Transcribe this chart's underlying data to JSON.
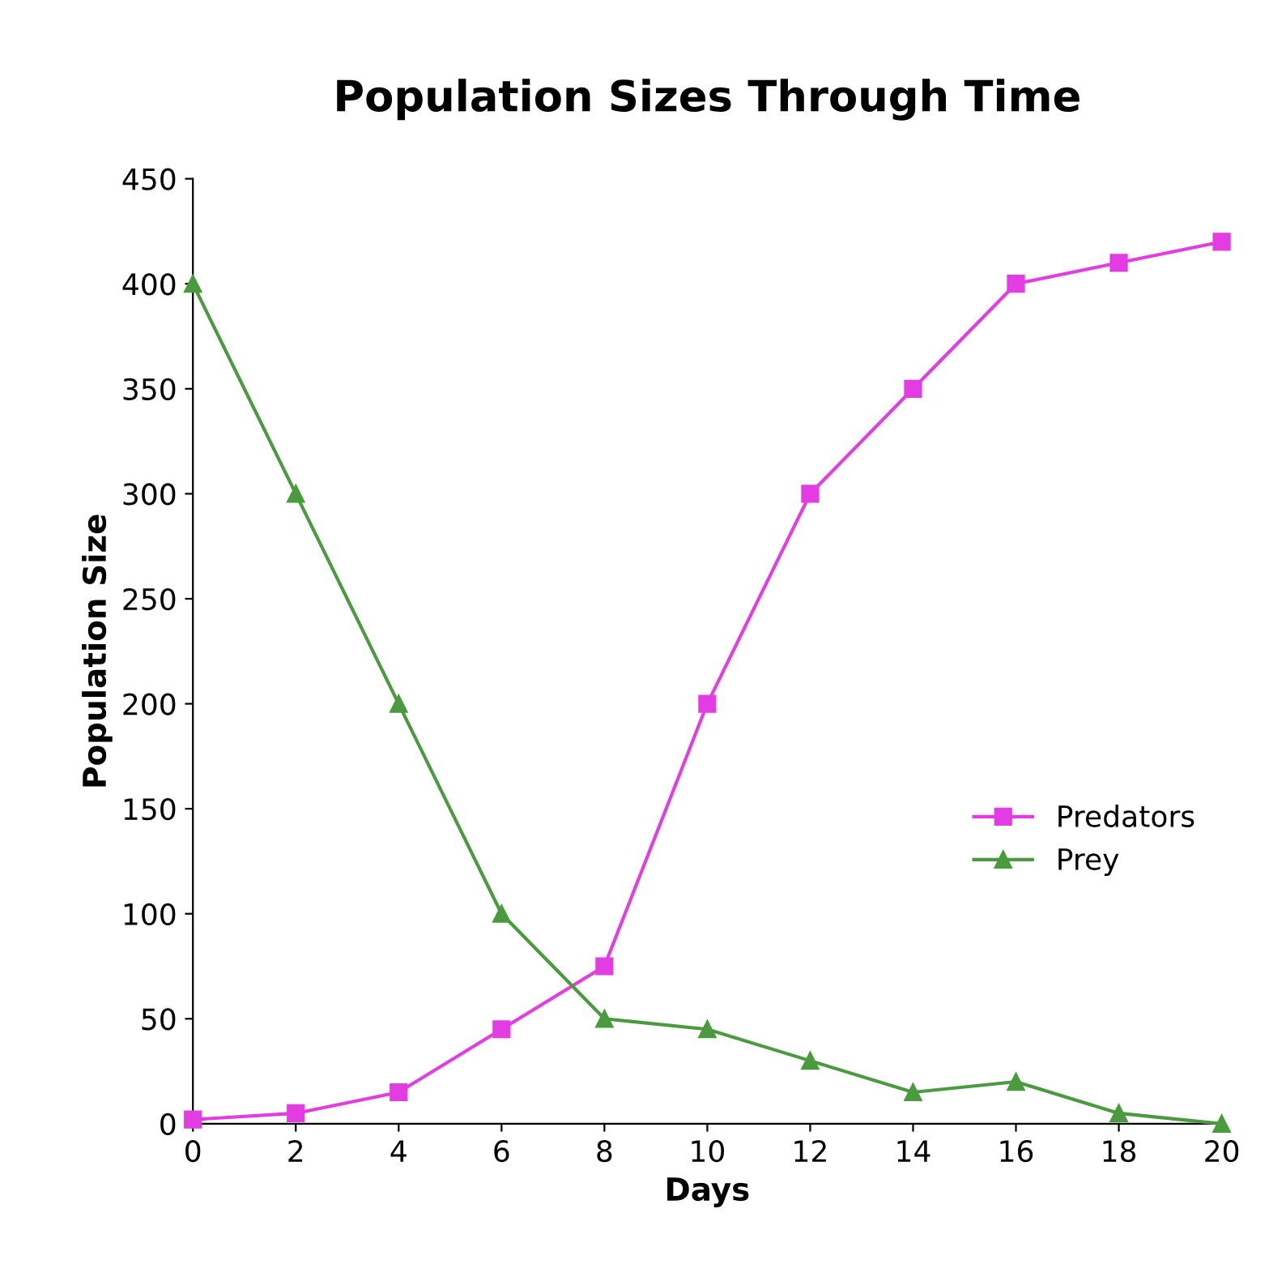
{
  "chart_data": {
    "type": "line",
    "title": "Population Sizes Through Time",
    "xlabel": "Days",
    "ylabel": "Population Size",
    "x": [
      0,
      2,
      4,
      6,
      8,
      10,
      12,
      14,
      16,
      18,
      20
    ],
    "series": [
      {
        "name": "Predators",
        "color": "#e33ce3",
        "marker": "square",
        "values": [
          2,
          5,
          15,
          45,
          75,
          200,
          300,
          350,
          400,
          410,
          420
        ]
      },
      {
        "name": "Prey",
        "color": "#4a9a3e",
        "marker": "triangle",
        "values": [
          400,
          300,
          200,
          100,
          50,
          45,
          30,
          15,
          20,
          5,
          0
        ]
      }
    ],
    "xlim": [
      0,
      20
    ],
    "xticks": [
      0,
      2,
      4,
      6,
      8,
      10,
      12,
      14,
      16,
      18,
      20
    ],
    "ylim": [
      0,
      450
    ],
    "yticks": [
      0,
      50,
      100,
      150,
      200,
      250,
      300,
      350,
      400,
      450
    ],
    "grid": false,
    "legend": "center right",
    "line_style": "solid"
  }
}
